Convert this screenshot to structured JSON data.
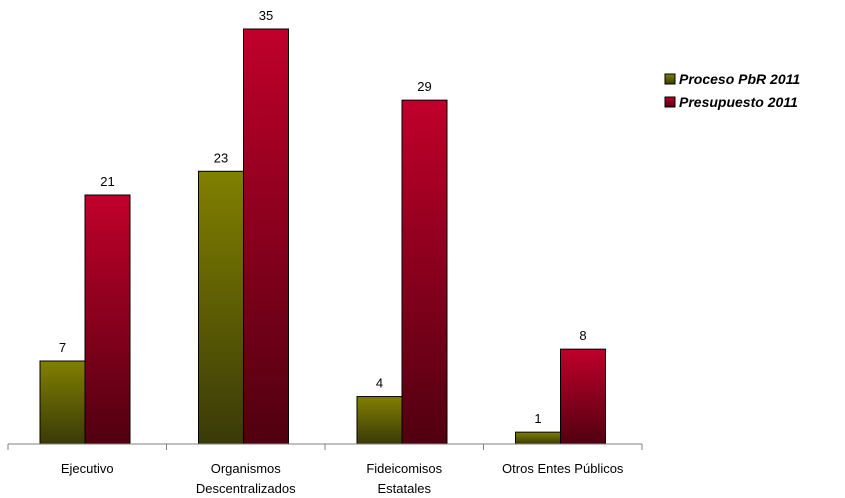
{
  "chart_data": {
    "type": "bar",
    "categories": [
      [
        "Ejecutivo"
      ],
      [
        "Organismos",
        "Descentralizados"
      ],
      [
        "Fideicomisos",
        "Estatales"
      ],
      [
        "Otros Entes Públicos"
      ]
    ],
    "series": [
      {
        "name": "Proceso PbR 2011",
        "values": [
          7,
          23,
          4,
          1
        ],
        "color_top": "#808000",
        "color_bottom": "#3a3a08"
      },
      {
        "name": "Presupuesto 2011",
        "values": [
          21,
          35,
          29,
          8
        ],
        "color_top": "#c0002a",
        "color_bottom": "#500010"
      }
    ],
    "ylim": [
      0,
      35
    ],
    "grid": false,
    "legend_position": "top-right",
    "data_labels": true
  }
}
